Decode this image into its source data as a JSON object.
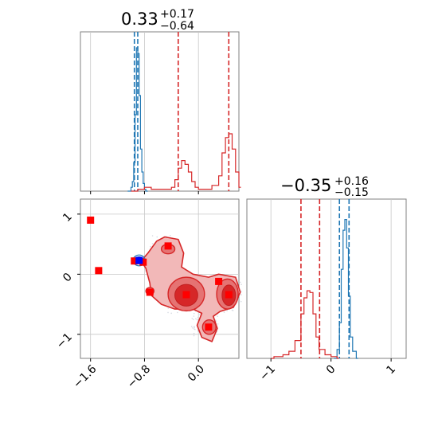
{
  "chart_data": [
    {
      "type": "histogram",
      "panel": "top-left marginal",
      "title": {
        "value": "0.33",
        "plus": "+0.17",
        "minus": "−0.64"
      },
      "xlim": [
        -1.75,
        0.6
      ],
      "grid": true,
      "series": [
        {
          "name": "",
          "color": "#1f77b4",
          "quantiles": [
            -0.95,
            -0.9
          ],
          "bins": [
            [
              -1.05,
              0.0
            ],
            [
              -1.0,
              0.02
            ],
            [
              -0.98,
              0.05
            ],
            [
              -0.96,
              0.15
            ],
            [
              -0.94,
              0.4
            ],
            [
              -0.92,
              0.75
            ],
            [
              -0.9,
              0.72
            ],
            [
              -0.88,
              0.5
            ],
            [
              -0.86,
              0.22
            ],
            [
              -0.84,
              0.1
            ],
            [
              -0.82,
              0.04
            ],
            [
              -0.8,
              0.01
            ],
            [
              -0.78,
              0.0
            ]
          ]
        },
        {
          "name": "",
          "color": "#d62728",
          "quantiles": [
            -0.3,
            0.45
          ],
          "bins": [
            [
              -1.0,
              0.0
            ],
            [
              -0.9,
              0.01
            ],
            [
              -0.8,
              0.02
            ],
            [
              -0.7,
              0.01
            ],
            [
              -0.5,
              0.01
            ],
            [
              -0.4,
              0.02
            ],
            [
              -0.35,
              0.06
            ],
            [
              -0.3,
              0.12
            ],
            [
              -0.25,
              0.16
            ],
            [
              -0.2,
              0.14
            ],
            [
              -0.15,
              0.1
            ],
            [
              -0.1,
              0.05
            ],
            [
              -0.05,
              0.02
            ],
            [
              0.0,
              0.01
            ],
            [
              0.1,
              0.01
            ],
            [
              0.2,
              0.03
            ],
            [
              0.3,
              0.08
            ],
            [
              0.35,
              0.2
            ],
            [
              0.4,
              0.28
            ],
            [
              0.45,
              0.3
            ],
            [
              0.5,
              0.22
            ],
            [
              0.55,
              0.1
            ],
            [
              0.6,
              0.02
            ]
          ]
        }
      ]
    },
    {
      "type": "scatter-contour",
      "panel": "bottom-left joint",
      "xlim": [
        -1.75,
        0.6
      ],
      "ylim": [
        -1.4,
        1.25
      ],
      "xticks": [
        "−1.6",
        "−0.8",
        "0.0"
      ],
      "yticks": [
        "1",
        "0",
        "−1"
      ],
      "grid": true,
      "red_markers": [
        [
          -1.6,
          0.9
        ],
        [
          -1.48,
          0.06
        ],
        [
          -0.95,
          0.22
        ],
        [
          -0.82,
          0.2
        ],
        [
          -0.72,
          -0.3
        ],
        [
          -0.45,
          0.47
        ],
        [
          -0.18,
          -0.34
        ],
        [
          0.15,
          -0.88
        ],
        [
          0.3,
          -0.12
        ],
        [
          0.45,
          -0.34
        ]
      ],
      "blue_marker": [
        -0.88,
        0.23
      ],
      "red_contour_centers": [
        [
          -0.18,
          -0.35
        ],
        [
          0.45,
          -0.35
        ],
        [
          0.15,
          -0.88
        ],
        [
          -0.45,
          0.47
        ]
      ],
      "blue_contour_center": [
        -0.88,
        0.23
      ]
    },
    {
      "type": "histogram",
      "panel": "bottom-right marginal",
      "title": {
        "value": "−0.35",
        "plus": "+0.16",
        "minus": "−0.15"
      },
      "xlim": [
        -1.4,
        1.25
      ],
      "xticks": [
        "−1",
        "0",
        "1"
      ],
      "grid": true,
      "series": [
        {
          "name": "",
          "color": "#1f77b4",
          "quantiles": [
            0.14,
            0.3
          ],
          "bins": [
            [
              0.05,
              0.0
            ],
            [
              0.1,
              0.05
            ],
            [
              0.14,
              0.2
            ],
            [
              0.17,
              0.5
            ],
            [
              0.2,
              0.72
            ],
            [
              0.23,
              0.78
            ],
            [
              0.26,
              0.62
            ],
            [
              0.29,
              0.35
            ],
            [
              0.32,
              0.12
            ],
            [
              0.36,
              0.04
            ],
            [
              0.42,
              0.0
            ]
          ]
        },
        {
          "name": "",
          "color": "#d62728",
          "quantiles": [
            -0.5,
            -0.19
          ],
          "bins": [
            [
              -1.0,
              0.0
            ],
            [
              -0.95,
              0.01
            ],
            [
              -0.8,
              0.02
            ],
            [
              -0.7,
              0.04
            ],
            [
              -0.6,
              0.1
            ],
            [
              -0.5,
              0.25
            ],
            [
              -0.45,
              0.34
            ],
            [
              -0.4,
              0.38
            ],
            [
              -0.35,
              0.37
            ],
            [
              -0.3,
              0.25
            ],
            [
              -0.25,
              0.12
            ],
            [
              -0.2,
              0.05
            ],
            [
              -0.1,
              0.02
            ],
            [
              0.0,
              0.01
            ],
            [
              0.1,
              0.0
            ]
          ]
        }
      ]
    }
  ]
}
